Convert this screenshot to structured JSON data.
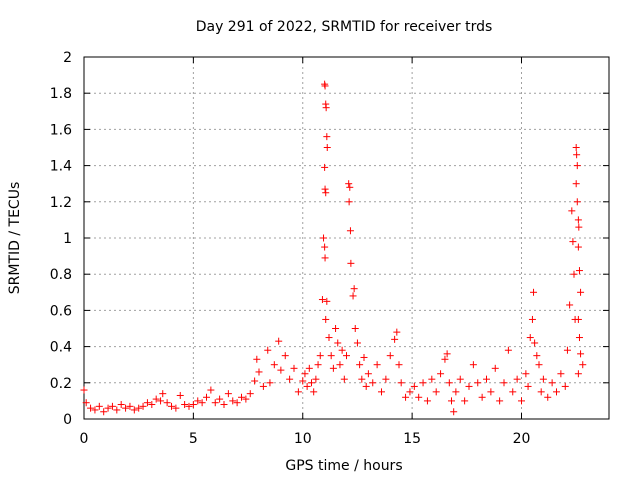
{
  "chart_data": {
    "type": "scatter",
    "title": "Day 291 of 2022, SRMTID for receiver trds",
    "xlabel": "GPS time / hours",
    "ylabel": "SRMTID / TECUs",
    "xlim": [
      0,
      24
    ],
    "ylim": [
      0,
      2
    ],
    "x_ticks": [
      0,
      5,
      10,
      15,
      20
    ],
    "x_tick_labels": [
      "0",
      "5",
      "10",
      "15",
      "20"
    ],
    "y_ticks": [
      0,
      0.2,
      0.4,
      0.6,
      0.8,
      1,
      1.2,
      1.4,
      1.6,
      1.8,
      2
    ],
    "y_tick_labels": [
      "0",
      "0.2",
      "0.4",
      "0.6",
      "0.8",
      "1",
      "1.2",
      "1.4",
      "1.6",
      "1.8",
      "2"
    ],
    "grid": true,
    "marker": "+",
    "color": "#ff0000",
    "series": [
      {
        "name": "SRMTID",
        "points": [
          [
            0.0,
            0.16
          ],
          [
            0.1,
            0.09
          ],
          [
            0.3,
            0.06
          ],
          [
            0.5,
            0.05
          ],
          [
            0.7,
            0.07
          ],
          [
            0.9,
            0.04
          ],
          [
            1.1,
            0.06
          ],
          [
            1.3,
            0.07
          ],
          [
            1.5,
            0.05
          ],
          [
            1.7,
            0.08
          ],
          [
            1.9,
            0.06
          ],
          [
            2.1,
            0.07
          ],
          [
            2.3,
            0.05
          ],
          [
            2.5,
            0.06
          ],
          [
            2.7,
            0.07
          ],
          [
            2.9,
            0.09
          ],
          [
            3.1,
            0.08
          ],
          [
            3.3,
            0.11
          ],
          [
            3.5,
            0.1
          ],
          [
            3.6,
            0.14
          ],
          [
            3.8,
            0.09
          ],
          [
            4.0,
            0.07
          ],
          [
            4.2,
            0.06
          ],
          [
            4.4,
            0.13
          ],
          [
            4.6,
            0.08
          ],
          [
            4.8,
            0.07
          ],
          [
            5.0,
            0.08
          ],
          [
            5.2,
            0.1
          ],
          [
            5.4,
            0.09
          ],
          [
            5.6,
            0.12
          ],
          [
            5.8,
            0.16
          ],
          [
            6.0,
            0.09
          ],
          [
            6.2,
            0.11
          ],
          [
            6.4,
            0.08
          ],
          [
            6.6,
            0.14
          ],
          [
            6.8,
            0.1
          ],
          [
            7.0,
            0.09
          ],
          [
            7.2,
            0.12
          ],
          [
            7.4,
            0.11
          ],
          [
            7.6,
            0.14
          ],
          [
            7.8,
            0.21
          ],
          [
            7.9,
            0.33
          ],
          [
            8.0,
            0.26
          ],
          [
            8.2,
            0.18
          ],
          [
            8.4,
            0.38
          ],
          [
            8.5,
            0.2
          ],
          [
            8.7,
            0.3
          ],
          [
            8.9,
            0.43
          ],
          [
            9.0,
            0.27
          ],
          [
            9.2,
            0.35
          ],
          [
            9.4,
            0.22
          ],
          [
            9.6,
            0.28
          ],
          [
            9.8,
            0.15
          ],
          [
            10.0,
            0.21
          ],
          [
            10.1,
            0.25
          ],
          [
            10.2,
            0.18
          ],
          [
            10.3,
            0.28
          ],
          [
            10.4,
            0.2
          ],
          [
            10.5,
            0.15
          ],
          [
            10.6,
            0.22
          ],
          [
            10.7,
            0.3
          ],
          [
            10.8,
            0.35
          ],
          [
            10.9,
            0.66
          ],
          [
            10.95,
            1.0
          ],
          [
            11.0,
            1.85
          ],
          [
            11.02,
            1.84
          ],
          [
            11.05,
            1.74
          ],
          [
            11.07,
            1.72
          ],
          [
            11.1,
            1.56
          ],
          [
            11.12,
            1.5
          ],
          [
            11.0,
            1.39
          ],
          [
            11.02,
            1.27
          ],
          [
            11.05,
            1.25
          ],
          [
            11.0,
            0.95
          ],
          [
            11.02,
            0.89
          ],
          [
            11.05,
            0.55
          ],
          [
            11.1,
            0.65
          ],
          [
            11.2,
            0.45
          ],
          [
            11.3,
            0.35
          ],
          [
            11.4,
            0.28
          ],
          [
            11.5,
            0.5
          ],
          [
            11.6,
            0.42
          ],
          [
            11.7,
            0.3
          ],
          [
            11.8,
            0.38
          ],
          [
            11.9,
            0.22
          ],
          [
            12.0,
            0.35
          ],
          [
            12.1,
            1.3
          ],
          [
            12.15,
            1.28
          ],
          [
            12.12,
            1.2
          ],
          [
            12.18,
            1.04
          ],
          [
            12.2,
            0.86
          ],
          [
            12.3,
            0.68
          ],
          [
            12.35,
            0.72
          ],
          [
            12.4,
            0.5
          ],
          [
            12.5,
            0.42
          ],
          [
            12.6,
            0.3
          ],
          [
            12.7,
            0.22
          ],
          [
            12.8,
            0.34
          ],
          [
            12.9,
            0.18
          ],
          [
            13.0,
            0.25
          ],
          [
            13.2,
            0.2
          ],
          [
            13.4,
            0.3
          ],
          [
            13.6,
            0.15
          ],
          [
            13.8,
            0.22
          ],
          [
            14.0,
            0.35
          ],
          [
            14.2,
            0.44
          ],
          [
            14.3,
            0.48
          ],
          [
            14.4,
            0.3
          ],
          [
            14.5,
            0.2
          ],
          [
            14.7,
            0.12
          ],
          [
            14.9,
            0.15
          ],
          [
            15.1,
            0.18
          ],
          [
            15.3,
            0.12
          ],
          [
            15.5,
            0.2
          ],
          [
            15.7,
            0.1
          ],
          [
            15.9,
            0.22
          ],
          [
            16.1,
            0.15
          ],
          [
            16.3,
            0.25
          ],
          [
            16.5,
            0.33
          ],
          [
            16.6,
            0.36
          ],
          [
            16.7,
            0.2
          ],
          [
            16.8,
            0.1
          ],
          [
            16.9,
            0.04
          ],
          [
            17.0,
            0.15
          ],
          [
            17.2,
            0.22
          ],
          [
            17.4,
            0.1
          ],
          [
            17.6,
            0.18
          ],
          [
            17.8,
            0.3
          ],
          [
            18.0,
            0.2
          ],
          [
            18.2,
            0.12
          ],
          [
            18.4,
            0.22
          ],
          [
            18.6,
            0.15
          ],
          [
            18.8,
            0.28
          ],
          [
            19.0,
            0.1
          ],
          [
            19.2,
            0.2
          ],
          [
            19.4,
            0.38
          ],
          [
            19.6,
            0.15
          ],
          [
            19.8,
            0.22
          ],
          [
            20.0,
            0.1
          ],
          [
            20.2,
            0.25
          ],
          [
            20.3,
            0.18
          ],
          [
            20.4,
            0.45
          ],
          [
            20.5,
            0.55
          ],
          [
            20.55,
            0.7
          ],
          [
            20.6,
            0.42
          ],
          [
            20.7,
            0.35
          ],
          [
            20.8,
            0.3
          ],
          [
            20.9,
            0.15
          ],
          [
            21.0,
            0.22
          ],
          [
            21.2,
            0.12
          ],
          [
            21.4,
            0.2
          ],
          [
            21.6,
            0.15
          ],
          [
            21.8,
            0.25
          ],
          [
            22.0,
            0.18
          ],
          [
            22.1,
            0.38
          ],
          [
            22.2,
            0.63
          ],
          [
            22.3,
            1.15
          ],
          [
            22.35,
            0.98
          ],
          [
            22.4,
            0.8
          ],
          [
            22.45,
            0.55
          ],
          [
            22.5,
            1.5
          ],
          [
            22.52,
            1.46
          ],
          [
            22.55,
            1.4
          ],
          [
            22.5,
            1.3
          ],
          [
            22.55,
            1.2
          ],
          [
            22.6,
            1.1
          ],
          [
            22.62,
            1.06
          ],
          [
            22.6,
            0.95
          ],
          [
            22.65,
            0.82
          ],
          [
            22.7,
            0.7
          ],
          [
            22.6,
            0.55
          ],
          [
            22.65,
            0.45
          ],
          [
            22.7,
            0.36
          ],
          [
            22.6,
            0.25
          ],
          [
            22.8,
            0.3
          ]
        ]
      }
    ]
  }
}
